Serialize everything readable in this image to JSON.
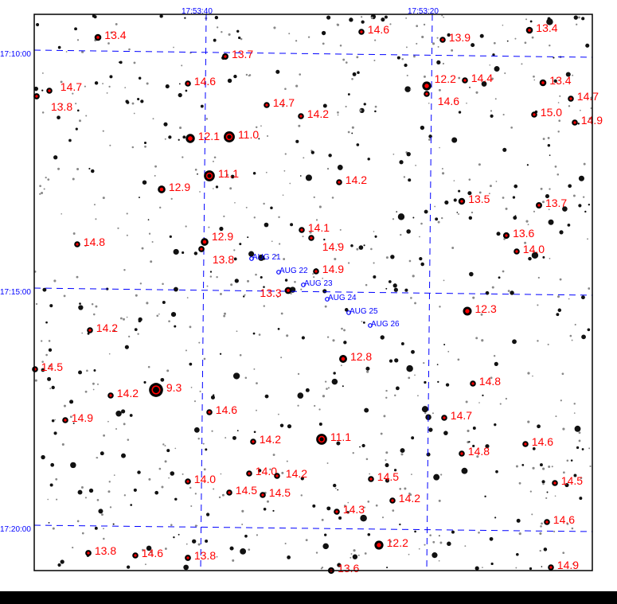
{
  "chart": {
    "ra_labels": [
      "17:53:40",
      "17:53:20"
    ],
    "dec_labels": [
      "17:10:00",
      "17:15:00",
      "17:20:00"
    ],
    "star_magnitudes": [
      "13.4",
      "13.7",
      "14.6",
      "14.7",
      "13.8",
      "14.7",
      "14.2",
      "12.1",
      "11.0",
      "11.1",
      "12.9",
      "14.8",
      "12.9",
      "13.8",
      "14.1",
      "14.9",
      "14.9",
      "13.3",
      "14.6",
      "13.9",
      "13.4",
      "12.2",
      "14.6",
      "14.4",
      "13.4",
      "14.7",
      "15.0",
      "14.9",
      "14.2",
      "13.5",
      "13.7",
      "13.6",
      "14.0",
      "12.3",
      "12.8",
      "14.8",
      "14.7",
      "11.1",
      "14.6",
      "14.8",
      "14.5",
      "14.5",
      "14.2",
      "14.3",
      "14.6",
      "12.2",
      "13.6",
      "14.9",
      "14.2",
      "14.5",
      "9.3",
      "14.2",
      "14.9",
      "14.6",
      "14.2",
      "14.0",
      "14.0",
      "14.2",
      "14.5",
      "14.5",
      "13.8",
      "14.6",
      "13.8"
    ],
    "track_labels": [
      "AUG 21",
      "AUG 22",
      "AUG 23",
      "AUG 24",
      "AUG 25",
      "AUG 26"
    ],
    "colors": {
      "magnitude_label": "#ff0000",
      "grid": "#0000ff",
      "track": "#0000ff",
      "frame": "#000000",
      "background": "#ffffff"
    }
  }
}
